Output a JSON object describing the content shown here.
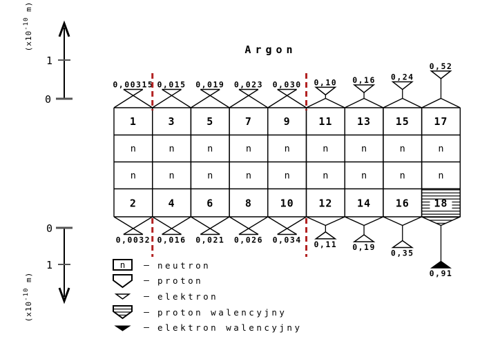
{
  "title": "Argon",
  "colors": {
    "line": "#000000",
    "dashed_guide": "#b22222"
  },
  "axis_top": {
    "tick_1": "1",
    "tick_0": "0",
    "unit_prefix": "(x10",
    "unit_exp": "-10",
    "unit_suffix": " m)"
  },
  "axis_bottom": {
    "tick_0": "0",
    "tick_1": "1",
    "unit_prefix": "(x10",
    "unit_exp": "-10",
    "unit_suffix": " m)"
  },
  "neutron_symbol": "n",
  "columns": [
    {
      "top_number": "1",
      "bottom_number": "2",
      "top_electron_distance": "0,00315",
      "bottom_electron_distance": "0,0032"
    },
    {
      "top_number": "3",
      "bottom_number": "4",
      "top_electron_distance": "0,015",
      "bottom_electron_distance": "0,016"
    },
    {
      "top_number": "5",
      "bottom_number": "6",
      "top_electron_distance": "0,019",
      "bottom_electron_distance": "0,021"
    },
    {
      "top_number": "7",
      "bottom_number": "8",
      "top_electron_distance": "0,023",
      "bottom_electron_distance": "0,026"
    },
    {
      "top_number": "9",
      "bottom_number": "10",
      "top_electron_distance": "0,030",
      "bottom_electron_distance": "0,034"
    },
    {
      "top_number": "11",
      "bottom_number": "12",
      "top_electron_distance": "0,10",
      "bottom_electron_distance": "0,11"
    },
    {
      "top_number": "13",
      "bottom_number": "14",
      "top_electron_distance": "0,16",
      "bottom_electron_distance": "0,19"
    },
    {
      "top_number": "15",
      "bottom_number": "16",
      "top_electron_distance": "0,24",
      "bottom_electron_distance": "0,35"
    },
    {
      "top_number": "17",
      "bottom_number": "18",
      "top_electron_distance": "0,52",
      "bottom_electron_distance": "0,91",
      "bottom_valence_proton": true,
      "bottom_valence_electron": true
    }
  ],
  "legend": {
    "separator": "–",
    "items": [
      {
        "symbol": "neutron",
        "label": "neutron"
      },
      {
        "symbol": "proton",
        "label": "proton"
      },
      {
        "symbol": "elektron",
        "label": "elektron"
      },
      {
        "symbol": "proton-walencyjny",
        "label": "proton walencyjny"
      },
      {
        "symbol": "elektron-walencyjny",
        "label": "elektron walencyjny"
      }
    ]
  }
}
